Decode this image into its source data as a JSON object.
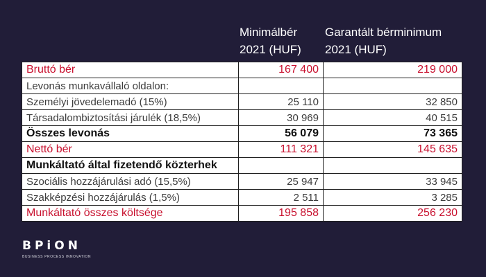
{
  "headers": {
    "col1": [
      "Minimálbér",
      "2021 (HUF)"
    ],
    "col2": [
      "Garantált bérminimum",
      "2021 (HUF)"
    ]
  },
  "rows": [
    {
      "label": "Bruttó bér",
      "v1": "167 400",
      "v2": "219 000"
    },
    {
      "label": "Levonás munkavállaló oldalon:",
      "v1": "",
      "v2": ""
    },
    {
      "label": "Személyi jövedelemadó (15%)",
      "v1": "25 110",
      "v2": "32 850"
    },
    {
      "label": "Társadalombiztosítási járulék (18,5%)",
      "v1": "30 969",
      "v2": "40 515"
    },
    {
      "label": "Összes levonás",
      "v1": "56 079",
      "v2": "73 365"
    },
    {
      "label": "Nettó bér",
      "v1": "111 321",
      "v2": "145 635"
    },
    {
      "label": "Munkáltató által fizetendő közterhek",
      "v1": "",
      "v2": ""
    },
    {
      "label": "Szociális hozzájárulási adó (15,5%)",
      "v1": "25 947",
      "v2": "33 945"
    },
    {
      "label": "Szakképzési hozzájárulás (1,5%)",
      "v1": "2 511",
      "v2": "3 285"
    },
    {
      "label": "Munkáltató összes költsége",
      "v1": "195 858",
      "v2": "256 230"
    }
  ],
  "logo": {
    "word": "BPiON",
    "tagline": "BUSINESS PROCESS INNOVATION"
  },
  "colors": {
    "background": "#211d38",
    "accent_red": "#c8102e",
    "table_bg": "#ffffff"
  }
}
